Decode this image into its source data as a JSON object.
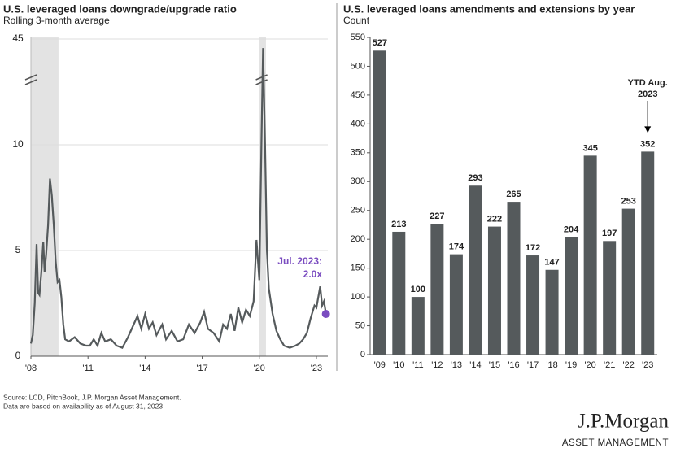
{
  "chart_data": [
    {
      "type": "line",
      "title": "U.S. leveraged loans downgrade/upgrade ratio",
      "subtitle": "Rolling 3-month average",
      "x": [
        2008.0,
        2008.1,
        2008.2,
        2008.3,
        2008.38,
        2008.45,
        2008.55,
        2008.65,
        2008.72,
        2008.8,
        2008.9,
        2009.0,
        2009.1,
        2009.2,
        2009.3,
        2009.4,
        2009.5,
        2009.6,
        2009.7,
        2009.8,
        2010.0,
        2010.3,
        2010.6,
        2010.9,
        2011.1,
        2011.3,
        2011.5,
        2011.7,
        2011.9,
        2012.2,
        2012.5,
        2012.8,
        2013.1,
        2013.4,
        2013.6,
        2013.8,
        2014.0,
        2014.2,
        2014.4,
        2014.6,
        2014.9,
        2015.1,
        2015.4,
        2015.7,
        2016.0,
        2016.3,
        2016.6,
        2016.9,
        2017.1,
        2017.3,
        2017.6,
        2017.9,
        2018.1,
        2018.3,
        2018.5,
        2018.7,
        2018.9,
        2019.1,
        2019.3,
        2019.5,
        2019.7,
        2019.85,
        2020.0,
        2020.12,
        2020.2,
        2020.3,
        2020.4,
        2020.5,
        2020.7,
        2020.9,
        2021.1,
        2021.3,
        2021.6,
        2021.9,
        2022.1,
        2022.3,
        2022.5,
        2022.7,
        2022.9,
        2023.0,
        2023.2,
        2023.3,
        2023.4,
        2023.5
      ],
      "values": [
        0.6,
        1.0,
        2.5,
        5.3,
        3.0,
        2.9,
        4.0,
        5.4,
        4.0,
        4.8,
        6.2,
        8.4,
        7.6,
        6.2,
        4.5,
        3.5,
        3.6,
        2.8,
        1.5,
        0.8,
        0.7,
        0.9,
        0.6,
        0.5,
        0.5,
        0.8,
        0.5,
        1.1,
        0.7,
        0.8,
        0.5,
        0.4,
        0.9,
        1.5,
        1.9,
        1.3,
        2.0,
        1.3,
        1.6,
        1.0,
        1.5,
        0.8,
        1.2,
        0.7,
        0.8,
        1.5,
        1.1,
        1.6,
        2.1,
        1.3,
        1.1,
        0.7,
        1.5,
        1.3,
        2.0,
        1.2,
        2.3,
        1.6,
        2.2,
        1.9,
        2.6,
        5.5,
        3.6,
        14.0,
        42.0,
        10.5,
        5.0,
        3.2,
        2.0,
        1.2,
        0.8,
        0.5,
        0.4,
        0.5,
        0.6,
        0.8,
        1.1,
        1.8,
        2.4,
        2.3,
        3.3,
        2.4,
        2.6,
        2.0
      ],
      "color": "#555a5c",
      "marker_color": "#7a4cc0",
      "highlight_last": true,
      "annotation_lines": [
        "Jul. 2023:",
        "2.0x"
      ],
      "shaded_ranges": [
        [
          2008.0,
          2009.45
        ],
        [
          2020.0,
          2020.35
        ]
      ],
      "shade_color": "#e3e3e3",
      "xlim": [
        2008,
        2023.6
      ],
      "xticks": [
        {
          "value": 2008,
          "label": "'08"
        },
        {
          "value": 2011,
          "label": "'11"
        },
        {
          "value": 2014,
          "label": "'14"
        },
        {
          "value": 2017,
          "label": "'17"
        },
        {
          "value": 2020,
          "label": "'20"
        },
        {
          "value": 2023,
          "label": "'23"
        }
      ],
      "ylim": [
        0,
        45
      ],
      "yticks": [
        0,
        5,
        10,
        45
      ],
      "broken_axis": true,
      "grid": true
    },
    {
      "type": "bar",
      "title": "U.S. leveraged loans amendments and extensions by year",
      "subtitle": "Count",
      "categories": [
        "'09",
        "'10",
        "'11",
        "'12",
        "'13",
        "'14",
        "'15",
        "'16",
        "'17",
        "'18",
        "'19",
        "'20",
        "'21",
        "'22",
        "'23"
      ],
      "values": [
        527,
        213,
        100,
        227,
        174,
        293,
        222,
        265,
        172,
        147,
        204,
        345,
        197,
        253,
        352
      ],
      "color": "#555a5c",
      "annotation_lines": [
        "YTD Aug.",
        "2023"
      ],
      "ylim": [
        0,
        550
      ],
      "yticks": [
        0,
        50,
        100,
        150,
        200,
        250,
        300,
        350,
        400,
        450,
        500,
        550
      ],
      "grid": false
    }
  ],
  "footer": {
    "source_lines": [
      "Source: LCD, PitchBook,  J.P. Morgan Asset Management.",
      "Data are based on availability as of August 31, 2023"
    ],
    "logo": "J.P.Morgan",
    "logo_sub": "ASSET MANAGEMENT"
  }
}
